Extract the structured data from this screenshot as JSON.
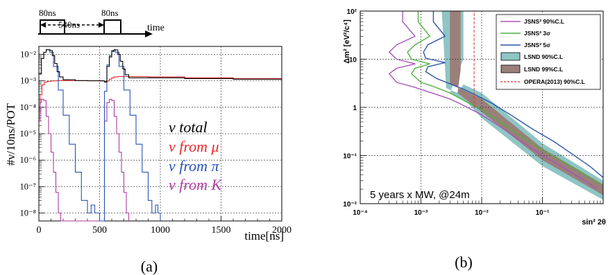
{
  "chart_data": [
    {
      "panel": "(a)",
      "type": "line",
      "timing": {
        "pulse_width_label": "80ns",
        "gap_label": "540ns",
        "axis_label": "time"
      },
      "xlabel": "time[ns]",
      "ylabel": "#ν/10ns/POT",
      "xlim": [
        0,
        2000
      ],
      "ylim": [
        5e-09,
        0.02
      ],
      "yscale": "log",
      "xticks": [
        "0",
        "500",
        "1000",
        "1500",
        "2000"
      ],
      "yticks": [
        "10⁻⁸",
        "10⁻⁷",
        "10⁻⁶",
        "10⁻⁵",
        "10⁻⁴",
        "10⁻³",
        "10⁻²"
      ],
      "grid": true,
      "legend_position": "lower-right",
      "series": [
        {
          "name": "ν total",
          "color": "#000000",
          "x": [
            0,
            20,
            40,
            60,
            80,
            90,
            110,
            130,
            150,
            170,
            200,
            300,
            400,
            500,
            540,
            560,
            580,
            600,
            620,
            630,
            650,
            670,
            690,
            710,
            740,
            900,
            1200,
            1600,
            2000
          ],
          "y": [
            0.0018,
            0.007,
            0.012,
            0.015,
            0.015,
            0.014,
            0.009,
            0.0045,
            0.0022,
            0.0014,
            0.0011,
            0.00102,
            0.00101,
            0.001,
            0.0009,
            0.0035,
            0.008,
            0.013,
            0.015,
            0.0148,
            0.01,
            0.0055,
            0.0028,
            0.0017,
            0.0013,
            0.0013,
            0.00122,
            0.00115,
            0.00107
          ]
        },
        {
          "name": "ν from μ",
          "color": "#e8292c",
          "x": [
            0,
            10,
            25,
            45,
            70,
            100,
            150,
            250,
            400,
            540,
            560,
            580,
            600,
            620,
            650,
            700,
            900,
            1200,
            1600,
            2000
          ],
          "y": [
            6e-05,
            0.0003,
            0.0007,
            0.0009,
            0.00095,
            0.001,
            0.00102,
            0.00101,
            0.001,
            0.00095,
            0.00098,
            0.00115,
            0.0013,
            0.0014,
            0.00145,
            0.00145,
            0.0014,
            0.0013,
            0.0012,
            0.0011
          ]
        },
        {
          "name": "ν from π",
          "color": "#2752b8",
          "x": [
            0,
            20,
            40,
            60,
            80,
            90,
            120,
            160,
            200,
            250,
            300,
            350,
            400,
            430,
            460,
            480,
            500,
            540,
            560,
            580,
            600,
            620,
            630,
            660,
            700,
            750,
            800,
            850,
            900,
            930,
            960,
            980,
            1000
          ],
          "y": [
            0.0018,
            0.007,
            0.012,
            0.015,
            0.015,
            0.012,
            0.0035,
            0.00045,
            5e-05,
            4e-06,
            3.5e-07,
            3e-08,
            1e-08,
            2e-08,
            1e-08,
            1e-08,
            5e-09,
            0.0004,
            0.004,
            0.009,
            0.014,
            0.015,
            0.012,
            0.0035,
            0.00045,
            5e-05,
            4e-06,
            3.5e-07,
            3e-08,
            1e-08,
            2e-08,
            1e-08,
            5e-09
          ]
        },
        {
          "name": "ν from K",
          "color": "#b03aa0",
          "x": [
            0,
            10,
            20,
            40,
            60,
            80,
            100,
            120,
            140,
            160,
            180,
            200,
            540,
            560,
            580,
            600,
            620,
            640,
            660,
            680,
            700,
            720,
            740
          ],
          "y": [
            3e-05,
            0.00015,
            0.0002,
            0.00018,
            4.5e-05,
            1e-05,
            2e-06,
            3.5e-07,
            6e-08,
            1e-08,
            5e-09,
            5e-09,
            3e-05,
            0.00015,
            0.0002,
            0.00018,
            4.5e-05,
            1e-05,
            2e-06,
            3.5e-07,
            6e-08,
            1e-08,
            5e-09
          ]
        }
      ]
    },
    {
      "panel": "(b)",
      "type": "line",
      "xlabel": "sin² 2θ",
      "ylabel": "Δm² [eV²/c⁴]",
      "xscale": "log",
      "yscale": "log",
      "xlim": [
        0.0001,
        1
      ],
      "ylim": [
        0.01,
        100
      ],
      "xticks": [
        "10⁻⁴",
        "10⁻³",
        "10⁻²",
        "10⁻¹"
      ],
      "yticks": [
        "10⁻²",
        "10⁻¹",
        "1",
        "10",
        "10²"
      ],
      "grid": true,
      "legend_position": "top-right",
      "annotation": "5 years x MW, @24m",
      "series": [
        {
          "name": "JSNS² 90%C.L",
          "color": "#a855b8",
          "x": [
            0.8,
            0.5,
            0.2,
            0.1,
            0.05,
            0.02,
            0.01,
            0.005,
            0.003,
            0.0015,
            0.0008,
            0.0004,
            0.0003,
            0.0004,
            0.0008,
            0.0004,
            0.0003,
            0.0004,
            0.0008,
            0.0005,
            0.0005
          ],
          "y": [
            0.02,
            0.03,
            0.06,
            0.1,
            0.18,
            0.4,
            0.7,
            1.1,
            1.5,
            2.0,
            2.6,
            3.3,
            5,
            6.5,
            8,
            10,
            14,
            20,
            30,
            60,
            100
          ]
        },
        {
          "name": "JSNS² 3σ",
          "color": "#4fb040",
          "x": [
            0.9,
            0.5,
            0.2,
            0.1,
            0.05,
            0.02,
            0.01,
            0.005,
            0.003,
            0.0015,
            0.001,
            0.0007,
            0.0008,
            0.0014,
            0.0007,
            0.0006,
            0.0008,
            0.0014,
            0.0009,
            0.0009
          ],
          "y": [
            0.025,
            0.04,
            0.08,
            0.13,
            0.23,
            0.5,
            0.9,
            1.4,
            2.0,
            2.8,
            3.3,
            5,
            6.5,
            8,
            10,
            14,
            20,
            30,
            60,
            100
          ]
        },
        {
          "name": "JSNS² 5σ",
          "color": "#2b55a8",
          "x": [
            1,
            0.6,
            0.3,
            0.15,
            0.07,
            0.03,
            0.015,
            0.008,
            0.005,
            0.0028,
            0.0018,
            0.0012,
            0.0013,
            0.0025,
            0.0012,
            0.0011,
            0.0013,
            0.0025,
            0.0016,
            0.0016
          ],
          "y": [
            0.035,
            0.06,
            0.11,
            0.2,
            0.35,
            0.7,
            1.2,
            1.8,
            2.4,
            3.2,
            4,
            5.5,
            7,
            8.5,
            10.5,
            14,
            20,
            30,
            60,
            100
          ]
        },
        {
          "name": "OPERA(2013) 90%C.L",
          "color": "#e03030",
          "x": [
            0.0075,
            0.0075
          ],
          "y": [
            1,
            100
          ]
        }
      ],
      "regions": [
        {
          "name": "LSND 90%C.L",
          "color": "#8ec5c5",
          "upper_x": [
            0.0022,
            0.0026,
            0.004,
            0.005,
            0.01,
            0.1,
            1
          ],
          "upper_y": [
            100,
            2.5,
            2.0,
            3.0,
            2.0,
            0.18,
            0.03
          ],
          "lower_x": [
            0.005,
            0.005,
            0.003,
            0.006,
            0.01,
            0.1,
            1
          ],
          "lower_y": [
            100,
            10,
            2.0,
            1.2,
            0.6,
            0.06,
            0.012
          ]
        },
        {
          "name": "LSND 99%C.L",
          "color": "#9b7f7a",
          "upper_x": [
            0.003,
            0.003,
            0.005,
            0.01,
            0.1,
            1
          ],
          "upper_y": [
            100,
            3,
            2.3,
            1.5,
            0.14,
            0.025
          ],
          "lower_x": [
            0.0045,
            0.0045,
            0.004,
            0.01,
            0.1,
            1
          ],
          "lower_y": [
            100,
            6,
            2.0,
            0.8,
            0.08,
            0.015
          ]
        }
      ]
    }
  ],
  "captions": {
    "a": "(a)",
    "b": "(b)"
  }
}
